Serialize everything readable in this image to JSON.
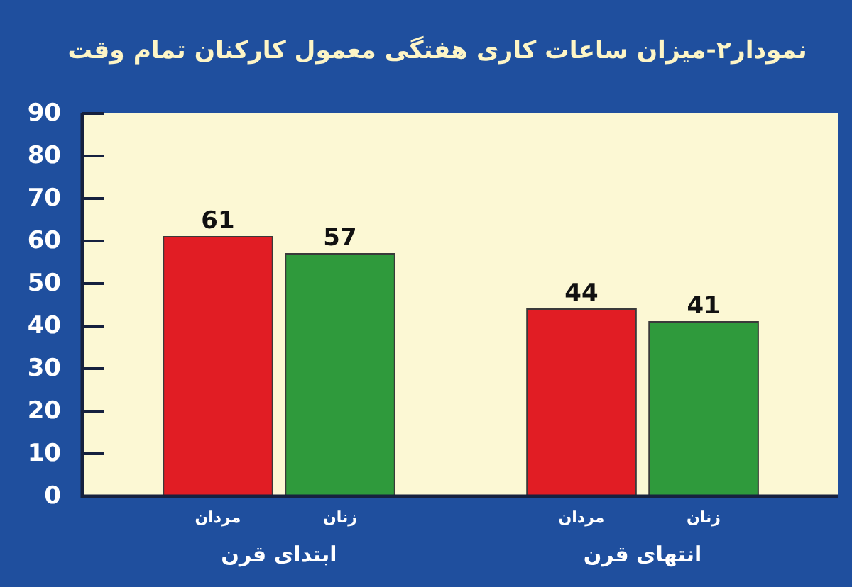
{
  "chart_data": {
    "type": "bar",
    "title": "نمودار۲-میزان ساعات کاری هفتگی معمول کارکنان تمام وقت",
    "categories": [
      "ابتدای قرن",
      "انتهای قرن"
    ],
    "series": [
      {
        "name": "مردان",
        "color": "#e11d24",
        "values": [
          61,
          44
        ]
      },
      {
        "name": "زنان",
        "color": "#2f9a3c",
        "values": [
          57,
          41
        ]
      }
    ],
    "ylim": [
      0,
      90
    ],
    "yticks": [
      0,
      10,
      20,
      30,
      40,
      50,
      60,
      70,
      80,
      90
    ],
    "data_labels": true
  }
}
